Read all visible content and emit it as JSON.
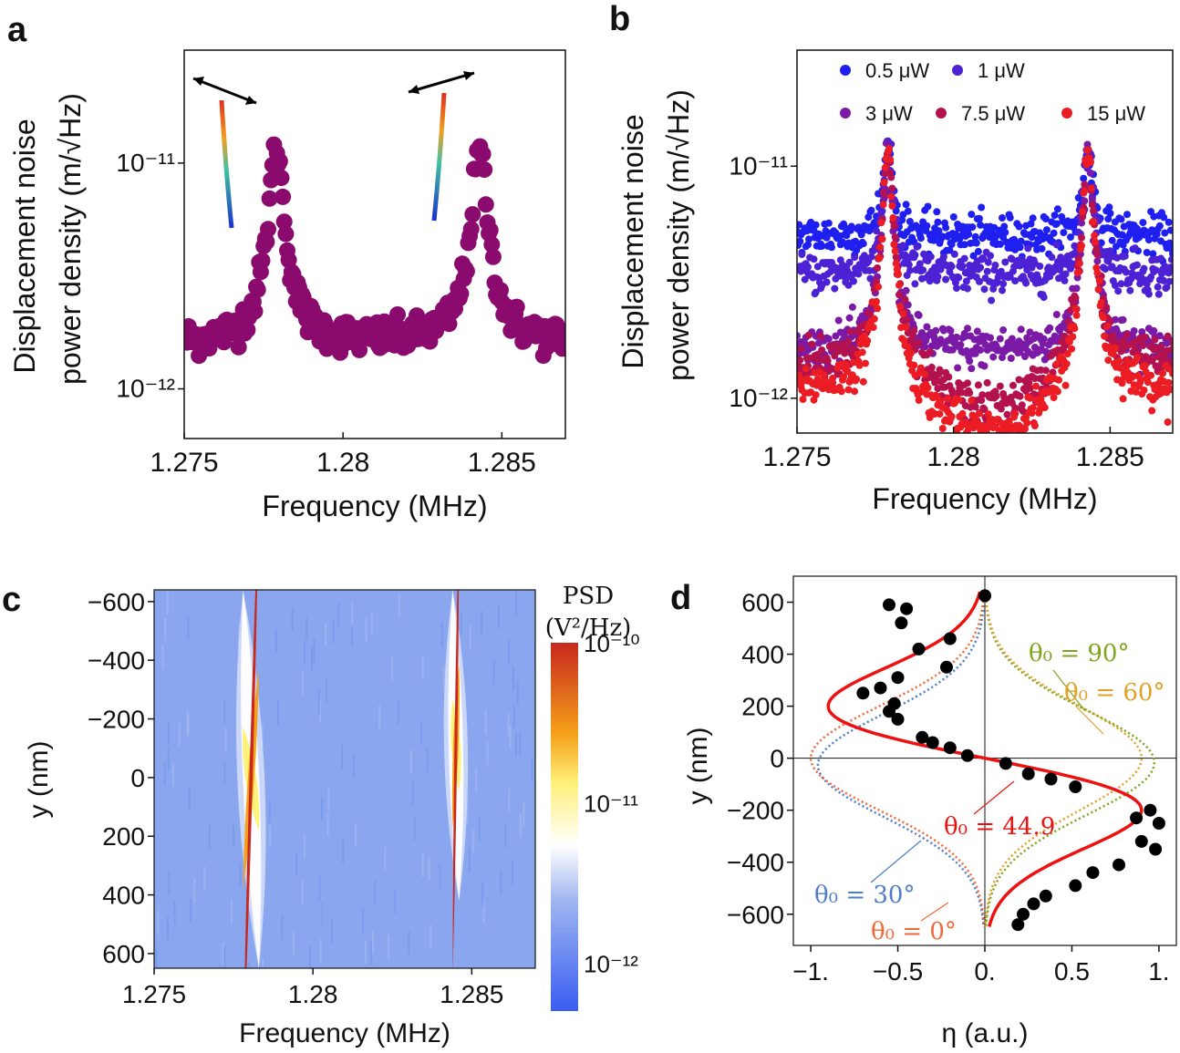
{
  "colors": {
    "panel_a_points": "#8b0a6e",
    "series_b": [
      "#1f1ff0",
      "#4d22d4",
      "#7a1aa6",
      "#b3124f",
      "#ec1c24"
    ],
    "fit": "#ee1111",
    "theta30": "#4f7ec9",
    "theta0": "#ee6a3a",
    "theta90": "#7fa51d",
    "theta60": "#e0a126",
    "data_points": "#000000"
  },
  "chart_data": [
    {
      "panel": "a",
      "type": "scatter",
      "title": "",
      "xlabel": "Frequency (MHz)",
      "ylabel_line1": "Displacement noise",
      "ylabel_line2": "power density (m/√Hz)",
      "xlim": [
        1.275,
        1.287
      ],
      "ylim_log10": [
        -12.22,
        -10.5
      ],
      "xticks": [
        {
          "v": 1.275,
          "label": "1.275"
        },
        {
          "v": 1.28,
          "label": "1.28"
        },
        {
          "v": 1.285,
          "label": "1.285"
        }
      ],
      "yticks": [
        {
          "exp": -11,
          "label": "10⁻¹¹"
        },
        {
          "exp": -12,
          "label": "10⁻¹²"
        }
      ],
      "peaks": [
        1.2779,
        1.2843
      ],
      "peak_value": 1.15e-11,
      "background": 1.6e-12,
      "annotations": [
        "mode shape insets with oscillation arrows"
      ]
    },
    {
      "panel": "b",
      "type": "scatter",
      "xlabel": "Frequency (MHz)",
      "ylabel_line1": "Displacement noise",
      "ylabel_line2": "power density (m/√Hz)",
      "xlim": [
        1.275,
        1.287
      ],
      "ylim_log10": [
        -12.15,
        -10.5
      ],
      "xticks": [
        {
          "v": 1.275,
          "label": "1.275"
        },
        {
          "v": 1.28,
          "label": "1.28"
        },
        {
          "v": 1.285,
          "label": "1.285"
        }
      ],
      "yticks": [
        {
          "exp": -11,
          "label": "10⁻¹¹"
        },
        {
          "exp": -12,
          "label": "10⁻¹²"
        }
      ],
      "series": [
        {
          "name": "0.5 μW",
          "background": 5e-12
        },
        {
          "name": "1 μW",
          "background": 3.4e-12
        },
        {
          "name": "3 μW",
          "background": 1.6e-12
        },
        {
          "name": "7.5 μW",
          "background": 1.1e-12
        },
        {
          "name": "15 μW",
          "background": 8.5e-13
        }
      ],
      "peaks": [
        1.2779,
        1.2843
      ],
      "peak_value": 1.15e-11,
      "legend_position": "top"
    },
    {
      "panel": "c",
      "type": "heatmap",
      "xlabel": "Frequency (MHz)",
      "ylabel": "y (nm)",
      "xlim": [
        1.275,
        1.287
      ],
      "ylim": [
        -640,
        650
      ],
      "xticks": [
        {
          "v": 1.275,
          "label": "1.275"
        },
        {
          "v": 1.28,
          "label": "1.28"
        },
        {
          "v": 1.285,
          "label": "1.285"
        }
      ],
      "yticks": [
        {
          "v": -600,
          "label": "−600"
        },
        {
          "v": -400,
          "label": "−400"
        },
        {
          "v": -200,
          "label": "−200"
        },
        {
          "v": 0,
          "label": "0"
        },
        {
          "v": 200,
          "label": "200"
        },
        {
          "v": 400,
          "label": "400"
        },
        {
          "v": 600,
          "label": "600"
        }
      ],
      "colorbar_title_line1": "PSD",
      "colorbar_title_line2": "(V²/Hz)",
      "colorbar_ticks": [
        {
          "exp": -10,
          "label": "10⁻¹⁰"
        },
        {
          "exp": -11,
          "label": "10⁻¹¹"
        },
        {
          "exp": -12,
          "label": "10⁻¹²"
        }
      ],
      "colorbar_range_log10": [
        -12.3,
        -10
      ]
    },
    {
      "panel": "d",
      "type": "line",
      "xlabel": "η (a.u.)",
      "ylabel": "y (nm)",
      "xlim": [
        -1.1,
        1.1
      ],
      "ylim": [
        -720,
        700
      ],
      "xticks": [
        {
          "v": -1,
          "label": "−1."
        },
        {
          "v": -0.5,
          "label": "−0.5"
        },
        {
          "v": 0,
          "label": "0."
        },
        {
          "v": 0.5,
          "label": "0.5"
        },
        {
          "v": 1,
          "label": "1."
        }
      ],
      "yticks": [
        {
          "v": 600,
          "label": "600"
        },
        {
          "v": 400,
          "label": "400"
        },
        {
          "v": 200,
          "label": "200"
        },
        {
          "v": 0,
          "label": "0"
        },
        {
          "v": -200,
          "label": "−200"
        },
        {
          "v": -400,
          "label": "−400"
        },
        {
          "v": -600,
          "label": "−600"
        }
      ],
      "curves": [
        {
          "name": "θ₀ = 44.9",
          "theta_deg": 44.9,
          "style": "solid"
        },
        {
          "name": "θ₀ = 30°",
          "theta_deg": 30,
          "style": "dotted"
        },
        {
          "name": "θ₀ = 0°",
          "theta_deg": 0,
          "style": "dotted"
        },
        {
          "name": "θ₀ = 90°",
          "theta_deg": 90,
          "style": "dotted"
        },
        {
          "name": "θ₀ = 60°",
          "theta_deg": 60,
          "style": "dotted"
        }
      ],
      "points": [
        {
          "y": 625,
          "x": 0.0
        },
        {
          "y": 590,
          "x": -0.55
        },
        {
          "y": 575,
          "x": -0.45
        },
        {
          "y": 520,
          "x": -0.48
        },
        {
          "y": 460,
          "x": -0.2
        },
        {
          "y": 420,
          "x": -0.38
        },
        {
          "y": 350,
          "x": -0.22
        },
        {
          "y": 310,
          "x": -0.5
        },
        {
          "y": 270,
          "x": -0.6
        },
        {
          "y": 250,
          "x": -0.7
        },
        {
          "y": 210,
          "x": -0.52
        },
        {
          "y": 180,
          "x": -0.55
        },
        {
          "y": 150,
          "x": -0.5
        },
        {
          "y": 80,
          "x": -0.36
        },
        {
          "y": 60,
          "x": -0.3
        },
        {
          "y": 40,
          "x": -0.2
        },
        {
          "y": 10,
          "x": -0.1
        },
        {
          "y": -20,
          "x": 0.12
        },
        {
          "y": -60,
          "x": 0.25
        },
        {
          "y": -80,
          "x": 0.38
        },
        {
          "y": -110,
          "x": 0.52
        },
        {
          "y": -200,
          "x": 0.95
        },
        {
          "y": -230,
          "x": 0.87
        },
        {
          "y": -250,
          "x": 1.0
        },
        {
          "y": -320,
          "x": 0.9
        },
        {
          "y": -350,
          "x": 0.98
        },
        {
          "y": -410,
          "x": 0.77
        },
        {
          "y": -440,
          "x": 0.62
        },
        {
          "y": -490,
          "x": 0.52
        },
        {
          "y": -530,
          "x": 0.35
        },
        {
          "y": -560,
          "x": 0.28
        },
        {
          "y": -600,
          "x": 0.22
        },
        {
          "y": -640,
          "x": 0.19
        }
      ]
    }
  ],
  "panel_labels": {
    "a": "a",
    "b": "b",
    "c": "c",
    "d": "d"
  }
}
